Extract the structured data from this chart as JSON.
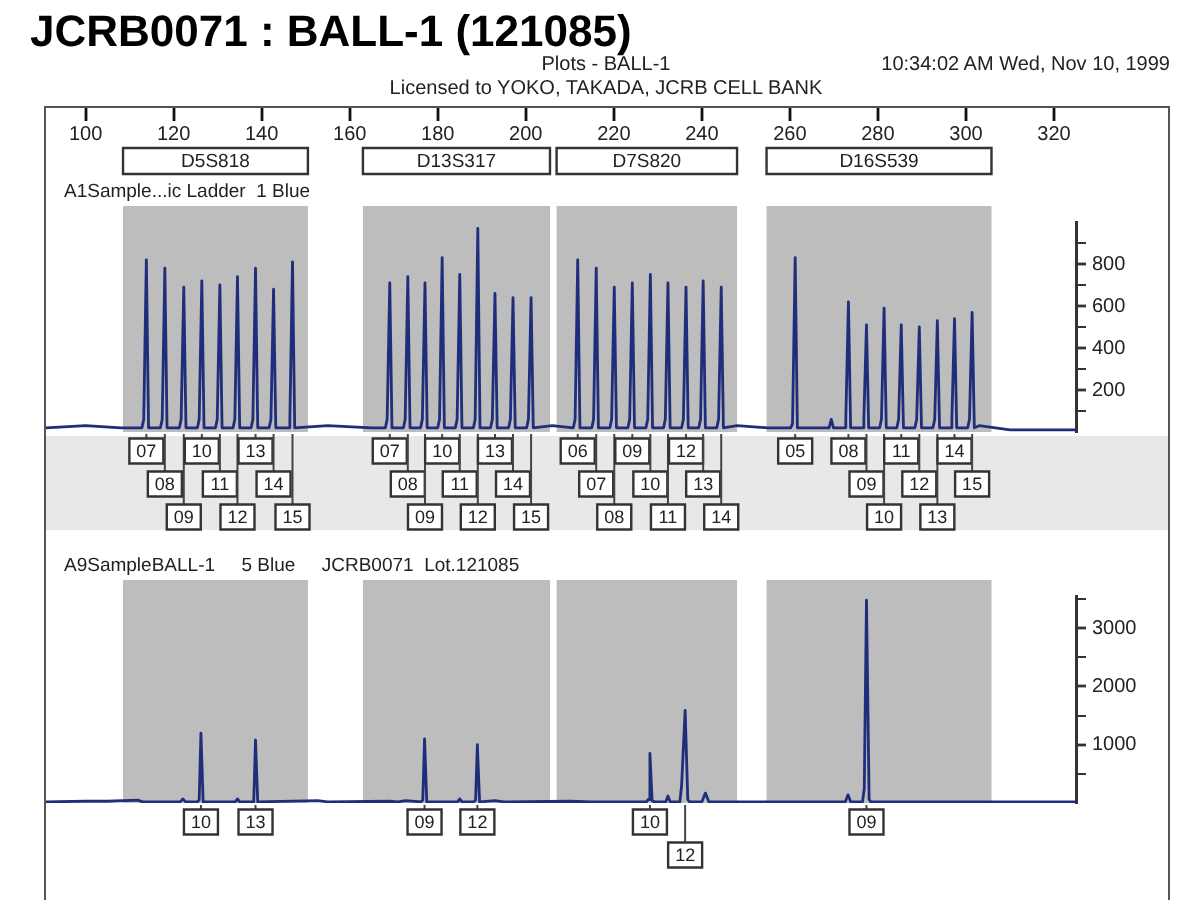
{
  "chart_data": [
    {
      "type": "line",
      "title": "JCRB0071 : BALL-1 (121085)",
      "subtitle": "Plots - BALL-1",
      "annotations": [
        "10:34:02 AM Wed, Nov 10, 1999",
        "Licensed to YOKO, TAKADA, JCRB CELL BANK",
        "A1Sample...ic Ladder  1 Blue",
        {
          "text": "07",
          "x": 113.8,
          "y": 0
        },
        {
          "text": "08",
          "x": 118,
          "y": 0
        },
        {
          "text": "09",
          "x": 122.3,
          "y": 0
        },
        {
          "text": "10",
          "x": 126.4,
          "y": 0
        },
        {
          "text": "11",
          "x": 130.5,
          "y": 0
        },
        {
          "text": "12",
          "x": 134.5,
          "y": 0
        },
        {
          "text": "13",
          "x": 138.6,
          "y": 0
        },
        {
          "text": "14",
          "x": 142.7,
          "y": 0
        },
        {
          "text": "15",
          "x": 147,
          "y": 0
        },
        {
          "text": "07",
          "x": 169.1,
          "y": 0
        },
        {
          "text": "08",
          "x": 173.2,
          "y": 0
        },
        {
          "text": "09",
          "x": 177.1,
          "y": 0
        },
        {
          "text": "10",
          "x": 181,
          "y": 0
        },
        {
          "text": "11",
          "x": 185,
          "y": 0
        },
        {
          "text": "12",
          "x": 189.1,
          "y": 0
        },
        {
          "text": "13",
          "x": 193,
          "y": 0
        },
        {
          "text": "14",
          "x": 197.1,
          "y": 0
        },
        {
          "text": "15",
          "x": 201.2,
          "y": 0
        },
        {
          "text": "06",
          "x": 211.8,
          "y": 0
        },
        {
          "text": "07",
          "x": 216,
          "y": 0
        },
        {
          "text": "08",
          "x": 220.1,
          "y": 0
        },
        {
          "text": "09",
          "x": 224.2,
          "y": 0
        },
        {
          "text": "10",
          "x": 228.3,
          "y": 0
        },
        {
          "text": "11",
          "x": 232.3,
          "y": 0
        },
        {
          "text": "12",
          "x": 236.4,
          "y": 0
        },
        {
          "text": "13",
          "x": 240.3,
          "y": 0
        },
        {
          "text": "14",
          "x": 244.4,
          "y": 0
        },
        {
          "text": "05",
          "x": 261.2,
          "y": 0
        },
        {
          "text": "08",
          "x": 273.3,
          "y": 0
        },
        {
          "text": "09",
          "x": 277.4,
          "y": 0
        },
        {
          "text": "10",
          "x": 281.4,
          "y": 0
        },
        {
          "text": "11",
          "x": 285.3,
          "y": 0
        },
        {
          "text": "12",
          "x": 289.4,
          "y": 0
        },
        {
          "text": "13",
          "x": 293.5,
          "y": 0
        },
        {
          "text": "14",
          "x": 297.4,
          "y": 0
        },
        {
          "text": "15",
          "x": 301.4,
          "y": 0
        }
      ],
      "x": [
        91,
        100,
        108,
        112.8,
        113.2,
        113.8,
        114.3,
        117,
        117.4,
        118,
        118.5,
        121.3,
        121.7,
        122.3,
        122.8,
        125.4,
        125.8,
        126.4,
        126.9,
        129.5,
        129.9,
        130.5,
        131,
        133.5,
        133.9,
        134.5,
        135,
        137.6,
        138,
        138.6,
        139.1,
        141.7,
        142.1,
        142.7,
        143.2,
        146,
        146.4,
        147,
        147.5,
        155,
        165,
        168.1,
        168.5,
        169.1,
        169.6,
        172.2,
        172.6,
        173.2,
        173.7,
        176.1,
        176.5,
        177.1,
        177.6,
        180,
        180.4,
        181,
        181.5,
        184,
        184.4,
        185,
        185.5,
        188.1,
        188.5,
        189.1,
        189.6,
        192,
        192.4,
        193,
        193.5,
        196.1,
        196.5,
        197.1,
        197.6,
        200.2,
        200.6,
        201.2,
        201.7,
        206,
        210.8,
        211.2,
        211.8,
        212.3,
        215,
        215.4,
        216,
        216.5,
        219.1,
        219.5,
        220.1,
        220.6,
        223.2,
        223.6,
        224.2,
        224.7,
        227.3,
        227.7,
        228.3,
        228.8,
        231.3,
        231.7,
        232.3,
        232.8,
        235.4,
        235.8,
        236.4,
        236.9,
        239.3,
        239.7,
        240.3,
        240.8,
        243.4,
        243.8,
        244.4,
        244.9,
        248,
        255,
        260.2,
        260.6,
        261.2,
        261.7,
        268.9,
        269.4,
        269.9,
        272.3,
        272.7,
        273.3,
        273.8,
        276.4,
        276.8,
        277.4,
        277.9,
        280.4,
        280.8,
        281.4,
        281.9,
        284.3,
        284.7,
        285.3,
        285.8,
        288.4,
        288.8,
        289.4,
        289.9,
        292.5,
        292.9,
        293.5,
        294,
        296.4,
        296.8,
        297.4,
        297.9,
        300.4,
        300.8,
        301.4,
        301.9,
        303,
        310,
        325
      ],
      "values": [
        20,
        30,
        20,
        20,
        60,
        820,
        20,
        20,
        60,
        780,
        20,
        20,
        60,
        690,
        20,
        20,
        60,
        720,
        20,
        20,
        60,
        700,
        20,
        20,
        60,
        740,
        20,
        20,
        60,
        780,
        20,
        20,
        60,
        680,
        20,
        20,
        60,
        810,
        20,
        30,
        20,
        20,
        60,
        710,
        20,
        20,
        60,
        740,
        20,
        20,
        60,
        710,
        20,
        20,
        60,
        830,
        20,
        20,
        60,
        750,
        20,
        20,
        60,
        970,
        20,
        20,
        60,
        660,
        20,
        20,
        60,
        640,
        20,
        20,
        60,
        640,
        20,
        30,
        20,
        60,
        820,
        20,
        20,
        60,
        780,
        20,
        20,
        60,
        690,
        20,
        20,
        60,
        710,
        20,
        20,
        60,
        750,
        20,
        20,
        60,
        710,
        20,
        20,
        60,
        690,
        20,
        20,
        60,
        720,
        20,
        20,
        60,
        690,
        20,
        30,
        20,
        20,
        40,
        830,
        20,
        20,
        60,
        20,
        20,
        60,
        620,
        20,
        20,
        60,
        510,
        20,
        20,
        60,
        590,
        20,
        20,
        60,
        510,
        20,
        20,
        60,
        500,
        20,
        20,
        60,
        530,
        20,
        20,
        60,
        540,
        20,
        20,
        60,
        570,
        20,
        30,
        10,
        10
      ],
      "color": "#1f2d7b",
      "marker": "none",
      "xlim": [
        91,
        325
      ],
      "xticks": [
        100,
        120,
        140,
        160,
        180,
        200,
        220,
        240,
        260,
        280,
        300,
        320
      ],
      "ylim": [
        0,
        1000
      ],
      "yticks": [
        {
          "value": 100,
          "label": null
        },
        200,
        {
          "value": 300,
          "label": null
        },
        400,
        {
          "value": 500,
          "label": null
        },
        600,
        {
          "value": 700,
          "label": null
        },
        800,
        {
          "value": 900,
          "label": null
        }
      ],
      "bands": [
        {
          "axis": "x",
          "from": 108.5,
          "to": 150.5,
          "label": "D5S818",
          "color": "#bdbdbd"
        },
        {
          "axis": "x",
          "from": 163,
          "to": 205.5,
          "label": "D13S317",
          "color": "#bdbdbd"
        },
        {
          "axis": "x",
          "from": 207,
          "to": 248,
          "label": "D7S820",
          "color": "#bdbdbd"
        },
        {
          "axis": "x",
          "from": 254.7,
          "to": 305.8,
          "label": "D16S539",
          "color": "#bdbdbd"
        }
      ]
    },
    {
      "type": "line",
      "annotations": [
        "A9SampleBALL-1     5 Blue     JCRB0071  Lot.121085",
        {
          "text": "10",
          "x": 126.2,
          "y": 0
        },
        {
          "text": "13",
          "x": 138.6,
          "y": 0
        },
        {
          "text": "09",
          "x": 177,
          "y": 0
        },
        {
          "text": "12",
          "x": 189,
          "y": 0
        },
        {
          "text": "10",
          "x": 228.2,
          "y": 0
        },
        {
          "text": "12",
          "x": 236.2,
          "y": 0
        },
        {
          "text": "09",
          "x": 277.4,
          "y": 0
        }
      ],
      "x": [
        91,
        100,
        105,
        111.8,
        113,
        121.5,
        122.1,
        122.7,
        125.4,
        125.8,
        126.2,
        126.7,
        134,
        134.5,
        135,
        137.8,
        138.2,
        138.6,
        139.1,
        152.7,
        155,
        169,
        171,
        172.7,
        176.2,
        176.6,
        177,
        177.5,
        184.5,
        185,
        185.5,
        188.2,
        188.6,
        189,
        189.5,
        193,
        195,
        210,
        215,
        227.4,
        227.8,
        228.2,
        228.7,
        229.2,
        231.8,
        232.3,
        232.8,
        235,
        235.4,
        236.2,
        236.8,
        237.2,
        240,
        240.8,
        241.6,
        255,
        272.6,
        273.2,
        273.8,
        276.5,
        276.9,
        277.4,
        278,
        278.4,
        290,
        325
      ],
      "values": [
        20,
        30,
        30,
        50,
        20,
        20,
        70,
        20,
        20,
        50,
        1200,
        20,
        20,
        70,
        20,
        20,
        50,
        1080,
        20,
        40,
        20,
        30,
        20,
        40,
        20,
        50,
        1100,
        20,
        20,
        70,
        20,
        20,
        50,
        1000,
        20,
        40,
        20,
        30,
        20,
        20,
        60,
        850,
        40,
        20,
        20,
        120,
        20,
        20,
        300,
        1590,
        60,
        20,
        20,
        170,
        20,
        20,
        20,
        140,
        20,
        20,
        250,
        3480,
        60,
        20,
        20,
        20
      ],
      "color": "#1f2d7b",
      "marker": "none",
      "xlim": [
        91,
        325
      ],
      "ylim": [
        0,
        3550
      ],
      "yticks": [
        {
          "value": 500,
          "label": null
        },
        1000,
        {
          "value": 1500,
          "label": null
        },
        2000,
        {
          "value": 2500,
          "label": null
        },
        3000,
        {
          "value": 3500,
          "label": null
        }
      ],
      "tick_labels": "y",
      "bands": [
        {
          "axis": "x",
          "from": 108.5,
          "to": 150.5,
          "color": "#bdbdbd"
        },
        {
          "axis": "x",
          "from": 163,
          "to": 205.5,
          "color": "#bdbdbd"
        },
        {
          "axis": "x",
          "from": 207,
          "to": 248,
          "color": "#bdbdbd"
        },
        {
          "axis": "x",
          "from": 254.7,
          "to": 305.8,
          "color": "#bdbdbd"
        }
      ]
    }
  ]
}
